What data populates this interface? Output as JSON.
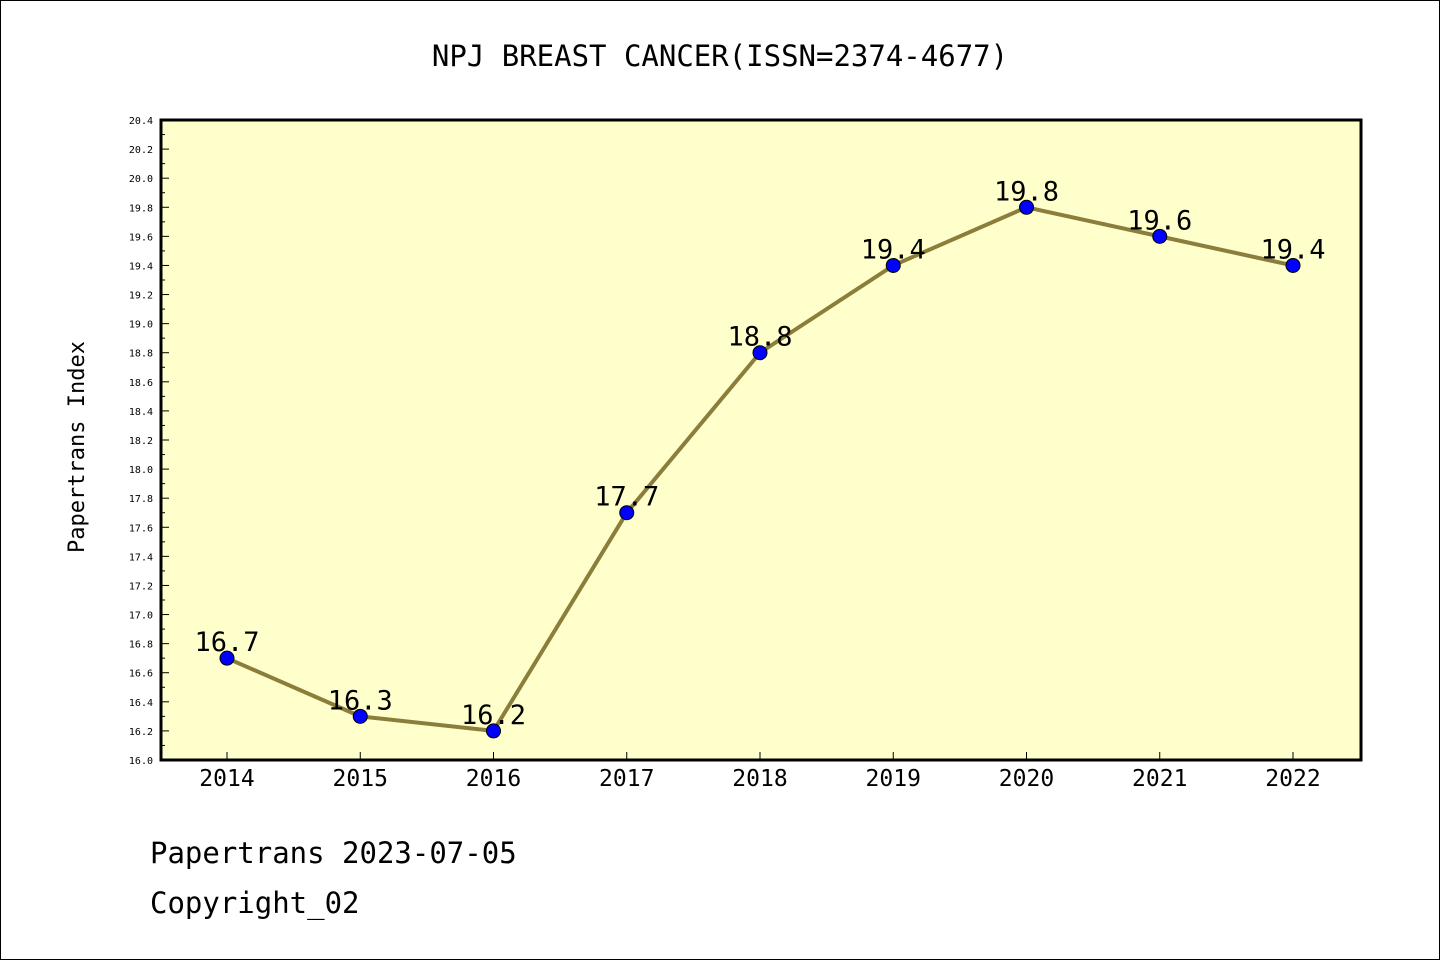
{
  "chart_data": {
    "type": "line",
    "title": "NPJ BREAST CANCER(ISSN=2374-4677)",
    "xlabel": "",
    "ylabel": "Papertrans Index",
    "categories": [
      "2014",
      "2015",
      "2016",
      "2017",
      "2018",
      "2019",
      "2020",
      "2021",
      "2022"
    ],
    "series": [
      {
        "values": [
          16.7,
          16.3,
          16.2,
          17.7,
          18.8,
          19.4,
          19.8,
          19.6,
          19.4
        ]
      }
    ],
    "data_labels": [
      "16.7",
      "16.3",
      "16.2",
      "17.7",
      "18.8",
      "19.4",
      "19.8",
      "19.6",
      "19.4"
    ],
    "ylim": [
      16.0,
      20.4
    ],
    "yticks": [
      "16.0",
      "16.2",
      "16.4",
      "16.6",
      "16.8",
      "17.0",
      "17.2",
      "17.4",
      "17.6",
      "17.8",
      "18.0",
      "18.2",
      "18.4",
      "18.6",
      "18.8",
      "19.0",
      "19.2",
      "19.4",
      "19.6",
      "19.8",
      "20.0",
      "20.2",
      "20.4"
    ],
    "grid": false,
    "colors": {
      "plot_bg": "#ffffcc",
      "line": "#8b7d3a",
      "marker": "#0000ff"
    }
  },
  "footer": {
    "line1": "Papertrans 2023-07-05",
    "line2": "Copyright_02"
  }
}
